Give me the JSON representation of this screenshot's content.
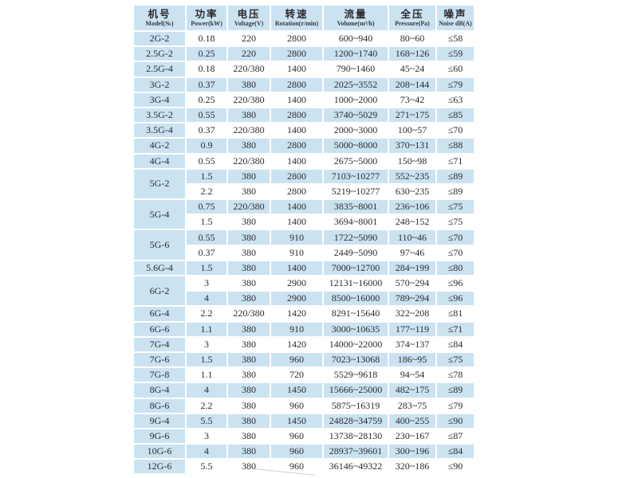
{
  "table": {
    "colors": {
      "stripe_blue": "#cbe2f1",
      "header_bg": "#cbe2f1",
      "text": "#2b2b2b",
      "page_bg": "#ffffff"
    },
    "columns": [
      {
        "key": "model",
        "zh": "机号",
        "en": "Model(№)"
      },
      {
        "key": "power",
        "zh": "功率",
        "en": "Power(kW)"
      },
      {
        "key": "voltage",
        "zh": "电压",
        "en": "Voltage(V)"
      },
      {
        "key": "rotation",
        "zh": "转速",
        "en": "Rotation(r/min)"
      },
      {
        "key": "volume",
        "zh": "流量",
        "en": "Volume(m³/h)"
      },
      {
        "key": "pressure",
        "zh": "全压",
        "en": "Pressure(Pa)"
      },
      {
        "key": "noise",
        "zh": "噪声",
        "en": "Noise dB(A)"
      }
    ],
    "groups": [
      {
        "model": "2G-2",
        "rows": [
          [
            "0.18",
            "220",
            "2800",
            "600~940",
            "80~60",
            "≤58"
          ]
        ]
      },
      {
        "model": "2.5G-2",
        "rows": [
          [
            "0.25",
            "220",
            "2800",
            "1200~1740",
            "168~126",
            "≤59"
          ]
        ]
      },
      {
        "model": "2.5G-4",
        "rows": [
          [
            "0.18",
            "220/380",
            "1400",
            "790~1460",
            "45~24",
            "≤60"
          ]
        ]
      },
      {
        "model": "3G-2",
        "rows": [
          [
            "0.37",
            "380",
            "2800",
            "2025~3552",
            "208~144",
            "≤79"
          ]
        ]
      },
      {
        "model": "3G-4",
        "rows": [
          [
            "0.25",
            "220/380",
            "1400",
            "1000~2000",
            "73~42",
            "≤63"
          ]
        ]
      },
      {
        "model": "3.5G-2",
        "rows": [
          [
            "0.55",
            "380",
            "2800",
            "3740~5029",
            "271~175",
            "≤85"
          ]
        ]
      },
      {
        "model": "3.5G-4",
        "rows": [
          [
            "0.37",
            "220/380",
            "1400",
            "2000~3000",
            "100~57",
            "≤70"
          ]
        ]
      },
      {
        "model": "4G-2",
        "rows": [
          [
            "0.9",
            "380",
            "2800",
            "5000~8000",
            "370~131",
            "≤88"
          ]
        ]
      },
      {
        "model": "4G-4",
        "rows": [
          [
            "0.55",
            "220/380",
            "1400",
            "2675~5000",
            "150~98",
            "≤71"
          ]
        ]
      },
      {
        "model": "5G-2",
        "rows": [
          [
            "1.5",
            "380",
            "2800",
            "7103~10277",
            "552~235",
            "≤89"
          ],
          [
            "2.2",
            "380",
            "2800",
            "5219~10277",
            "630~235",
            "≤89"
          ]
        ]
      },
      {
        "model": "5G-4",
        "rows": [
          [
            "0.75",
            "220/380",
            "1400",
            "3835~8001",
            "236~106",
            "≤75"
          ],
          [
            "1.5",
            "380",
            "1400",
            "3694~8001",
            "248~152",
            "≤75"
          ]
        ]
      },
      {
        "model": "5G-6",
        "rows": [
          [
            "0.55",
            "380",
            "910",
            "1722~5090",
            "110~46",
            "≤70"
          ],
          [
            "0.37",
            "380",
            "910",
            "2449~5090",
            "97~46",
            "≤70"
          ]
        ]
      },
      {
        "model": "5.6G-4",
        "rows": [
          [
            "1.5",
            "380",
            "1400",
            "7000~12700",
            "284~199",
            "≤80"
          ]
        ]
      },
      {
        "model": "6G-2",
        "rows": [
          [
            "3",
            "380",
            "2900",
            "12131~16000",
            "570~294",
            "≤96"
          ],
          [
            "4",
            "380",
            "2900",
            "8500~16000",
            "789~294",
            "≤96"
          ]
        ]
      },
      {
        "model": "6G-4",
        "rows": [
          [
            "2.2",
            "220/380",
            "1420",
            "8291~15640",
            "322~208",
            "≤81"
          ]
        ]
      },
      {
        "model": "6G-6",
        "rows": [
          [
            "1.1",
            "380",
            "910",
            "3000~10635",
            "177~119",
            "≤71"
          ]
        ]
      },
      {
        "model": "7G-4",
        "rows": [
          [
            "3",
            "380",
            "1420",
            "14000~22000",
            "374~137",
            "≤84"
          ]
        ]
      },
      {
        "model": "7G-6",
        "rows": [
          [
            "1.5",
            "380",
            "960",
            "7023~13068",
            "186~95",
            "≤75"
          ]
        ]
      },
      {
        "model": "7G-8",
        "rows": [
          [
            "1.1",
            "380",
            "720",
            "5529~9618",
            "94~54",
            "≤78"
          ]
        ]
      },
      {
        "model": "8G-4",
        "rows": [
          [
            "4",
            "380",
            "1450",
            "15666~25000",
            "482~175",
            "≤89"
          ]
        ]
      },
      {
        "model": "8G-6",
        "rows": [
          [
            "2.2",
            "380",
            "960",
            "5875~16319",
            "283~75",
            "≤79"
          ]
        ]
      },
      {
        "model": "9G-4",
        "rows": [
          [
            "5.5",
            "380",
            "1450",
            "24828~34759",
            "400~255",
            "≤90"
          ]
        ]
      },
      {
        "model": "9G-6",
        "rows": [
          [
            "3",
            "380",
            "960",
            "13738~28130",
            "230~167",
            "≤87"
          ]
        ]
      },
      {
        "model": "10G-6",
        "rows": [
          [
            "4",
            "380",
            "960",
            "28937~39601",
            "300~196",
            "≤84"
          ]
        ]
      },
      {
        "model": "12G-6",
        "rows": [
          [
            "5.5",
            "380",
            "960",
            "36146~49322",
            "320~186",
            "≤90"
          ]
        ]
      }
    ]
  }
}
